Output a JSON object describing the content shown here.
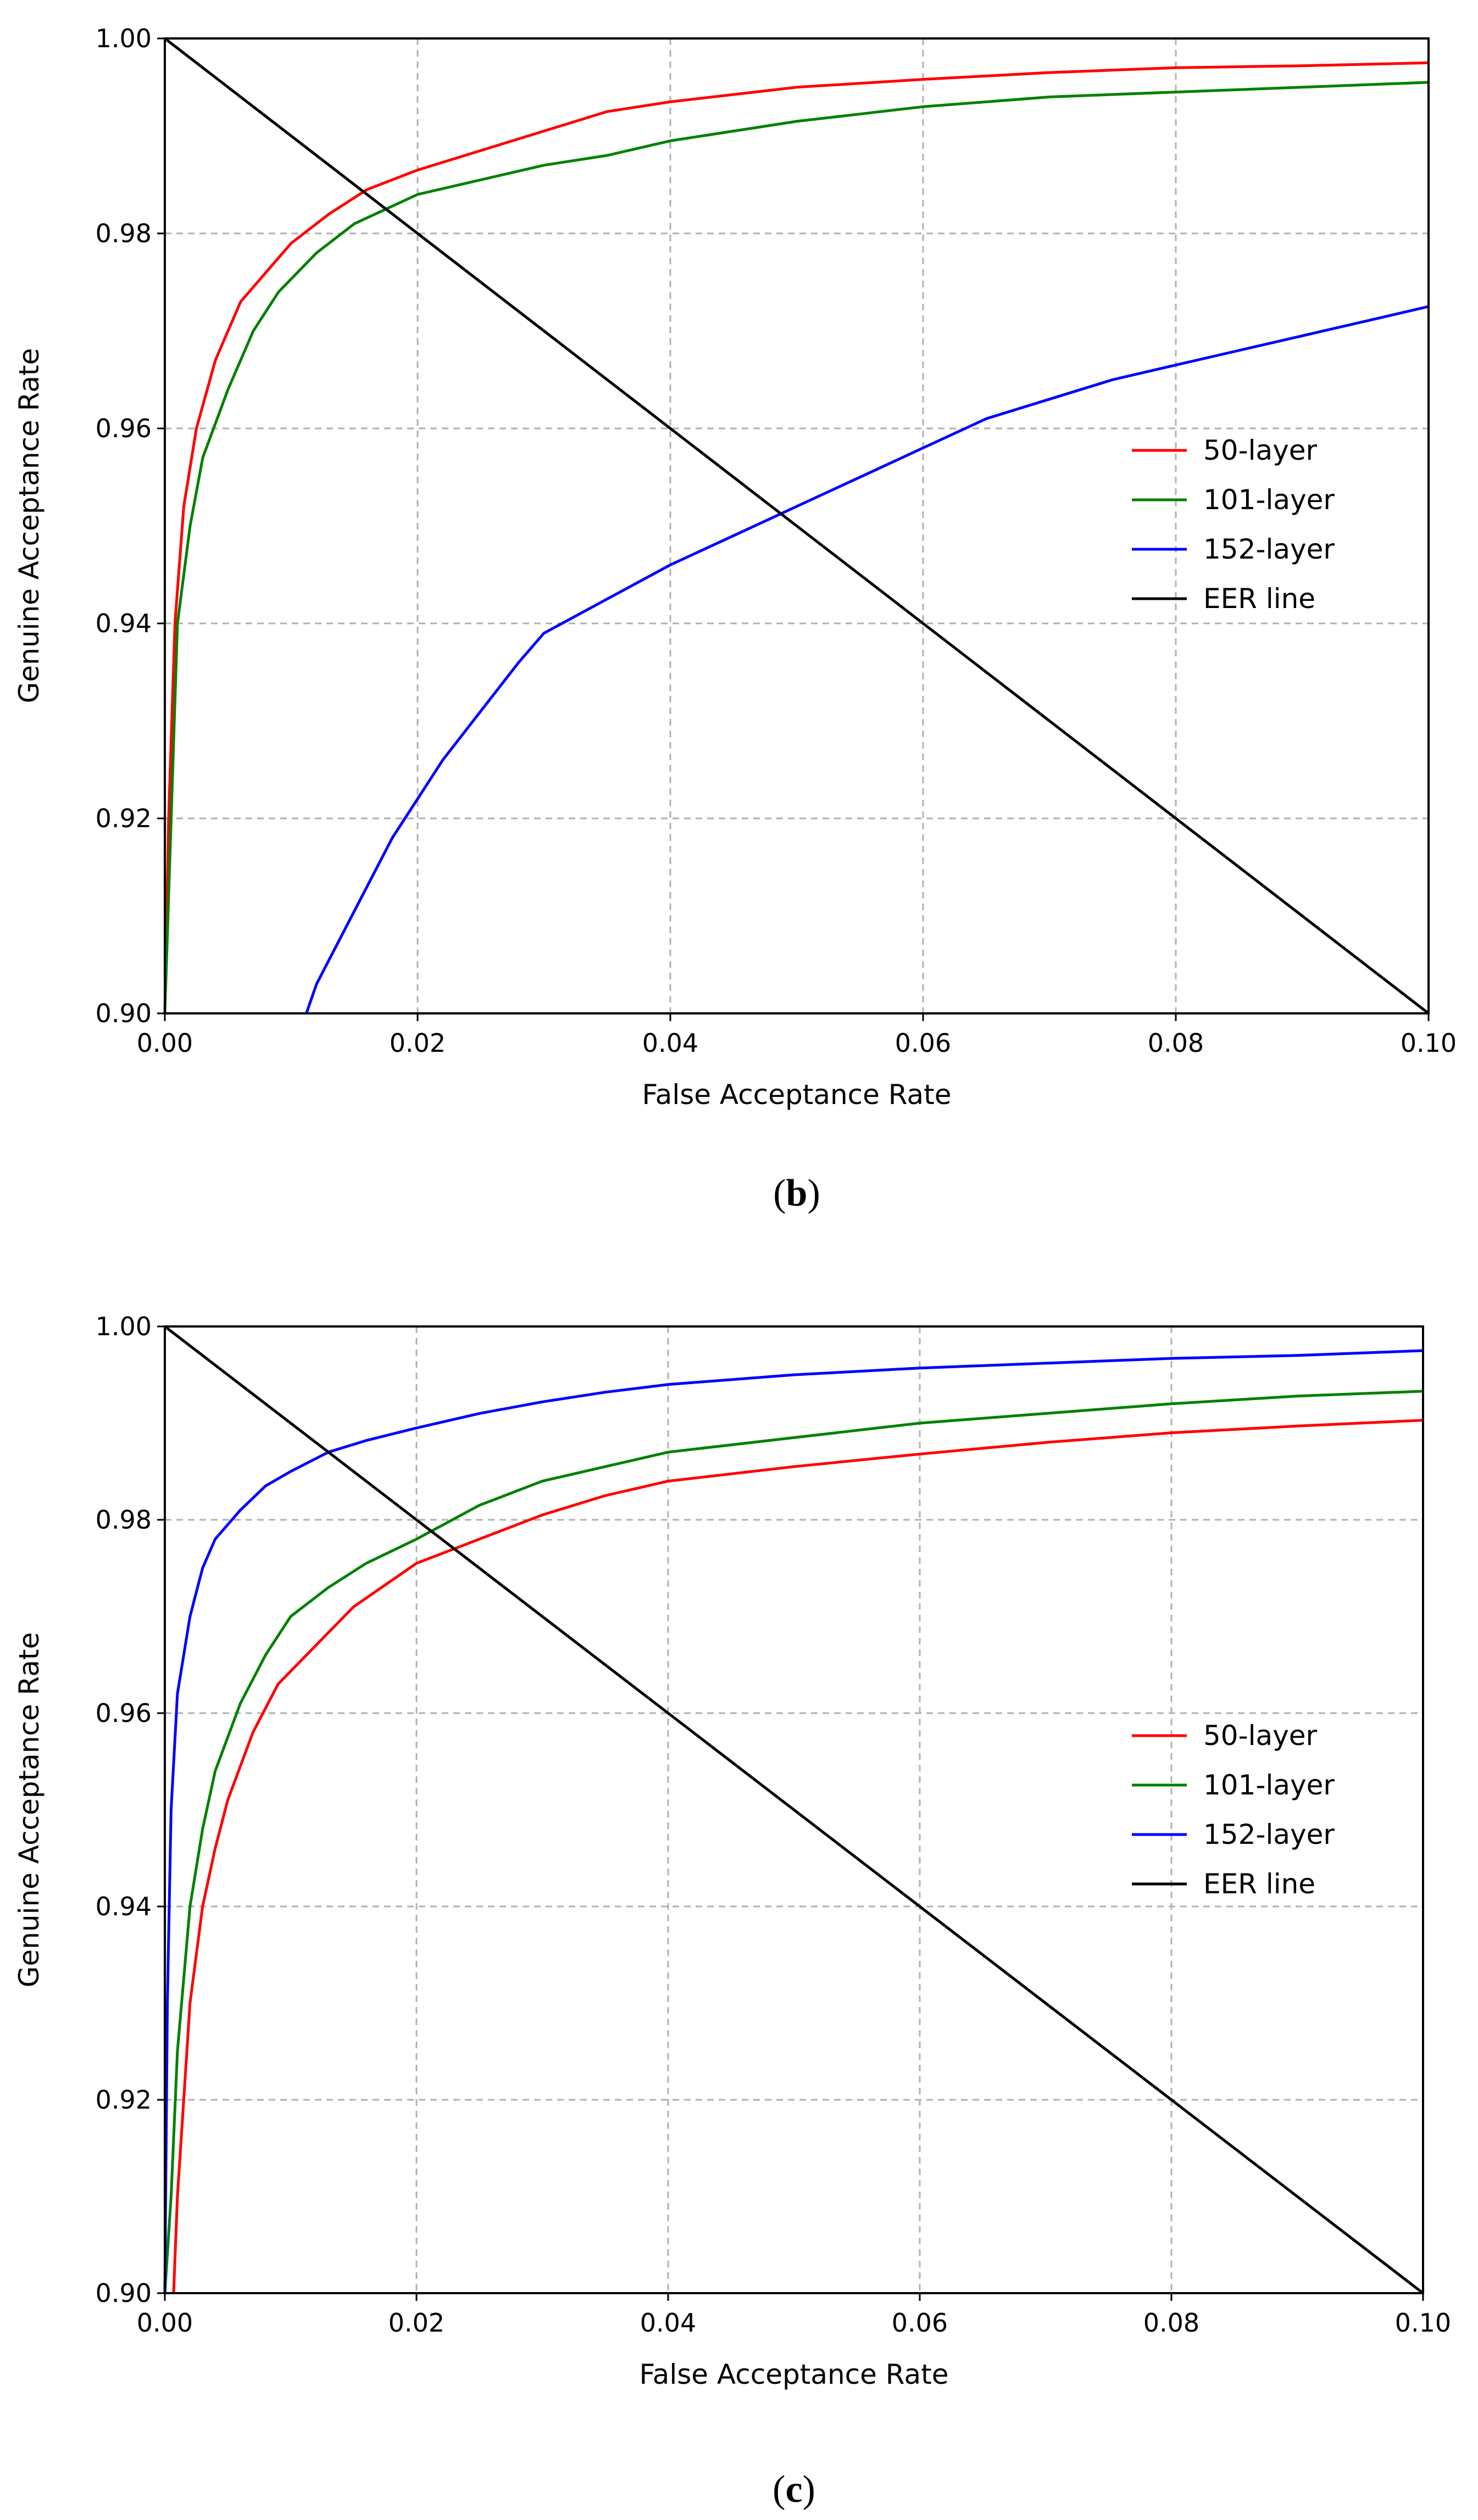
{
  "chart_data": [
    {
      "type": "line",
      "panel": "b",
      "caption": "(b)",
      "caption_letter": "b",
      "xlabel": "False Acceptance Rate",
      "ylabel": "Genuine Acceptance Rate",
      "xlim": [
        0,
        0.1
      ],
      "ylim": [
        0.9,
        1.0
      ],
      "xticks": [
        "0.00",
        "0.02",
        "0.04",
        "0.06",
        "0.08",
        "0.10"
      ],
      "yticks": [
        "0.90",
        "0.92",
        "0.94",
        "0.96",
        "0.98",
        "1.00"
      ],
      "grid": true,
      "legend_position": "center-right",
      "series": [
        {
          "name": "50-layer",
          "color": "#ff0000",
          "x": [
            0.0,
            0.0003,
            0.0008,
            0.0015,
            0.0025,
            0.004,
            0.006,
            0.008,
            0.01,
            0.013,
            0.016,
            0.02,
            0.025,
            0.03,
            0.035,
            0.04,
            0.05,
            0.06,
            0.07,
            0.08,
            0.09,
            0.1
          ],
          "y": [
            0.9,
            0.92,
            0.94,
            0.952,
            0.96,
            0.967,
            0.973,
            0.976,
            0.979,
            0.982,
            0.9845,
            0.9865,
            0.9885,
            0.9905,
            0.9925,
            0.9935,
            0.995,
            0.9958,
            0.9965,
            0.997,
            0.9972,
            0.9975
          ]
        },
        {
          "name": "101-layer",
          "color": "#008000",
          "x": [
            0.0,
            0.0005,
            0.001,
            0.002,
            0.003,
            0.005,
            0.007,
            0.009,
            0.012,
            0.015,
            0.02,
            0.025,
            0.03,
            0.035,
            0.04,
            0.05,
            0.06,
            0.07,
            0.08,
            0.09,
            0.1
          ],
          "y": [
            0.9,
            0.92,
            0.94,
            0.95,
            0.957,
            0.964,
            0.97,
            0.974,
            0.978,
            0.981,
            0.984,
            0.9855,
            0.987,
            0.988,
            0.9895,
            0.9915,
            0.993,
            0.994,
            0.9945,
            0.995,
            0.9955
          ]
        },
        {
          "name": "152-layer",
          "color": "#0000ff",
          "x": [
            0.0112,
            0.012,
            0.014,
            0.016,
            0.018,
            0.02,
            0.022,
            0.025,
            0.028,
            0.03,
            0.035,
            0.04,
            0.045,
            0.05,
            0.055,
            0.06,
            0.065,
            0.07,
            0.075,
            0.08,
            0.085,
            0.09,
            0.095,
            0.1
          ],
          "y": [
            0.9,
            0.903,
            0.908,
            0.913,
            0.918,
            0.922,
            0.926,
            0.931,
            0.936,
            0.939,
            0.9425,
            0.946,
            0.949,
            0.952,
            0.955,
            0.958,
            0.961,
            0.963,
            0.965,
            0.9665,
            0.968,
            0.9695,
            0.971,
            0.9725
          ]
        },
        {
          "name": "EER line",
          "color": "#000000",
          "x": [
            0.0,
            0.1
          ],
          "y": [
            1.0,
            0.9
          ]
        }
      ]
    },
    {
      "type": "line",
      "panel": "c",
      "caption": "(c)",
      "caption_letter": "c",
      "xlabel": "False Acceptance Rate",
      "ylabel": "Genuine Acceptance Rate",
      "xlim": [
        0,
        0.1
      ],
      "ylim": [
        0.9,
        1.0
      ],
      "xticks": [
        "0.00",
        "0.02",
        "0.04",
        "0.06",
        "0.08",
        "0.10"
      ],
      "yticks": [
        "0.90",
        "0.92",
        "0.94",
        "0.96",
        "0.98",
        "1.00"
      ],
      "grid": true,
      "legend_position": "center-right",
      "series": [
        {
          "name": "50-layer",
          "color": "#ff0000",
          "x": [
            0.0007,
            0.001,
            0.0015,
            0.002,
            0.003,
            0.004,
            0.005,
            0.007,
            0.009,
            0.012,
            0.015,
            0.02,
            0.025,
            0.03,
            0.035,
            0.04,
            0.05,
            0.06,
            0.07,
            0.08,
            0.09,
            0.1
          ],
          "y": [
            0.9,
            0.91,
            0.92,
            0.93,
            0.94,
            0.946,
            0.951,
            0.958,
            0.963,
            0.967,
            0.971,
            0.9755,
            0.978,
            0.9805,
            0.9825,
            0.984,
            0.9855,
            0.9868,
            0.988,
            0.989,
            0.9897,
            0.9903
          ]
        },
        {
          "name": "101-layer",
          "color": "#008000",
          "x": [
            0.0,
            0.0005,
            0.001,
            0.002,
            0.003,
            0.004,
            0.006,
            0.008,
            0.01,
            0.013,
            0.016,
            0.02,
            0.025,
            0.03,
            0.035,
            0.04,
            0.05,
            0.06,
            0.07,
            0.08,
            0.09,
            0.1
          ],
          "y": [
            0.9,
            0.91,
            0.925,
            0.94,
            0.948,
            0.954,
            0.961,
            0.966,
            0.97,
            0.973,
            0.9755,
            0.978,
            0.9815,
            0.984,
            0.9855,
            0.987,
            0.9885,
            0.99,
            0.991,
            0.992,
            0.9928,
            0.9933
          ]
        },
        {
          "name": "152-layer",
          "color": "#0000ff",
          "x": [
            0.0,
            0.0002,
            0.0005,
            0.001,
            0.002,
            0.003,
            0.004,
            0.006,
            0.008,
            0.01,
            0.013,
            0.016,
            0.02,
            0.025,
            0.03,
            0.035,
            0.04,
            0.05,
            0.06,
            0.07,
            0.08,
            0.09,
            0.1
          ],
          "y": [
            0.9,
            0.93,
            0.95,
            0.962,
            0.97,
            0.975,
            0.978,
            0.981,
            0.9835,
            0.985,
            0.987,
            0.9882,
            0.9895,
            0.991,
            0.9922,
            0.9932,
            0.994,
            0.995,
            0.9957,
            0.9962,
            0.9967,
            0.997,
            0.9975
          ]
        },
        {
          "name": "EER line",
          "color": "#000000",
          "x": [
            0.0,
            0.1
          ],
          "y": [
            1.0,
            0.9
          ]
        }
      ]
    }
  ]
}
